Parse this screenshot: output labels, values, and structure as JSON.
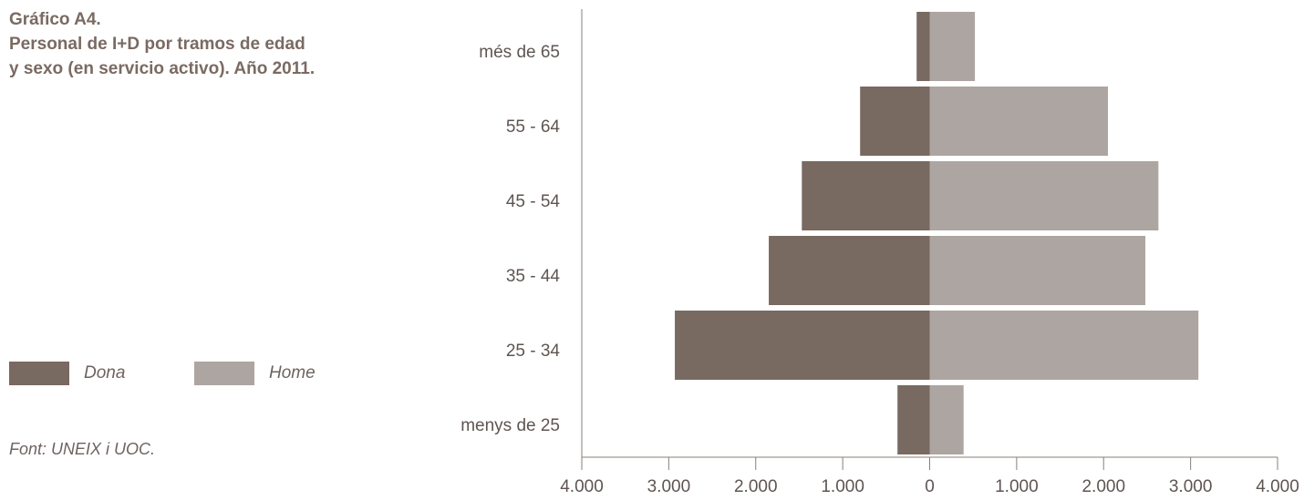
{
  "title": {
    "line1": "Gráfico A4.",
    "line2": "Personal de I+D por tramos de edad",
    "line3": "y sexo (en servicio activo). Año 2011."
  },
  "source": "Font: UNEIX i UOC.",
  "colors": {
    "dona": "#786961",
    "home": "#ada5a1",
    "axis": "#8a7f7a"
  },
  "legend": [
    {
      "label": "Dona",
      "color": "#786961"
    },
    {
      "label": "Home",
      "color": "#ada5a1"
    }
  ],
  "chart_data": {
    "type": "bar",
    "orientation": "horizontal",
    "variant": "population-pyramid",
    "categories": [
      "més de 65",
      "55 - 64",
      "45 - 54",
      "35 - 44",
      "25 - 34",
      "menys de 25"
    ],
    "series": [
      {
        "name": "Dona",
        "values": [
          150,
          800,
          1470,
          1850,
          2930,
          370
        ]
      },
      {
        "name": "Home",
        "values": [
          520,
          2050,
          2630,
          2480,
          3090,
          390
        ]
      }
    ],
    "xlim": [
      -4000,
      4000
    ],
    "xticks": [
      -4000,
      -3000,
      -2000,
      -1000,
      0,
      1000,
      2000,
      3000,
      4000
    ],
    "xtick_labels": [
      "4.000",
      "3.000",
      "2.000",
      "1.000",
      "0",
      "1.000",
      "2.000",
      "3.000",
      "4.000"
    ],
    "legend_position": "left",
    "grid": false
  }
}
